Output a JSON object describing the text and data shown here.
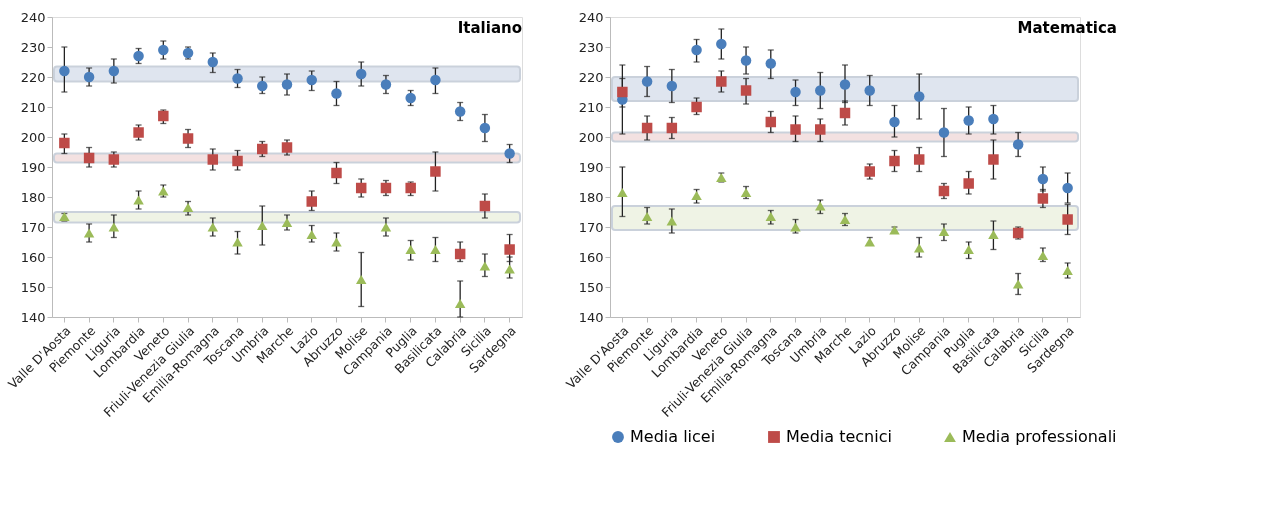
{
  "chart_data": [
    {
      "type": "scatter",
      "title": "Italiano",
      "categories": [
        "Valle D'Aosta",
        "Piemonte",
        "Liguria",
        "Lombardia",
        "Veneto",
        "Friuli-Venezia Giulia",
        "Emilia-Romagna",
        "Toscana",
        "Umbria",
        "Marche",
        "Lazio",
        "Abruzzo",
        "Molise",
        "Campania",
        "Puglia",
        "Basilicata",
        "Calabria",
        "Sicilia",
        "Sardegna"
      ],
      "ylim": [
        140,
        240
      ],
      "yticks": [
        140,
        150,
        160,
        170,
        180,
        190,
        200,
        210,
        220,
        230,
        240
      ],
      "grid": false,
      "legend": false,
      "series": [
        {
          "color": "#4a7ebb",
          "marker": "circle",
          "values": [
            222,
            220,
            222,
            227,
            229,
            228,
            225,
            219.5,
            217,
            217.5,
            219,
            214.5,
            221,
            217.5,
            213,
            219,
            208.5,
            203,
            194.5
          ],
          "errors": [
            [
              215,
              230
            ],
            [
              217,
              223
            ],
            [
              218,
              226
            ],
            [
              224.5,
              229.5
            ],
            [
              226,
              232
            ],
            [
              226,
              230
            ],
            [
              221.5,
              228
            ],
            [
              216.5,
              222.5
            ],
            [
              214.5,
              220
            ],
            [
              214,
              221
            ],
            [
              215.5,
              222
            ],
            [
              210.5,
              218.5
            ],
            [
              217,
              225
            ],
            [
              214.5,
              220.5
            ],
            [
              210.5,
              215.5
            ],
            [
              214.5,
              223
            ],
            [
              205.5,
              211.5
            ],
            [
              198.5,
              207.5
            ],
            [
              191.5,
              197.5
            ]
          ]
        },
        {
          "color": "#be4b48",
          "marker": "square",
          "values": [
            198,
            193,
            192.5,
            201.5,
            207,
            199.5,
            192.5,
            192,
            196,
            196.5,
            178.5,
            188,
            183,
            183,
            183,
            188.5,
            161,
            177,
            162.5
          ],
          "errors": [
            [
              194.5,
              201
            ],
            [
              190,
              196.5
            ],
            [
              190,
              195
            ],
            [
              199,
              204
            ],
            [
              204.5,
              209
            ],
            [
              196.5,
              202.5
            ],
            [
              189,
              196
            ],
            [
              189,
              195.5
            ],
            [
              193.5,
              198.5
            ],
            [
              194,
              199
            ],
            [
              175.5,
              182
            ],
            [
              184.5,
              191.5
            ],
            [
              180,
              186
            ],
            [
              180.5,
              185.5
            ],
            [
              180.5,
              185
            ],
            [
              182,
              195
            ],
            [
              158.5,
              165
            ],
            [
              173,
              181
            ],
            [
              158.5,
              167.5
            ]
          ]
        },
        {
          "color": "#9bbb59",
          "marker": "triangle",
          "values": [
            173.5,
            168,
            170,
            179,
            182,
            176.5,
            170,
            165,
            170.5,
            171.5,
            167.5,
            165,
            152.5,
            170,
            162.5,
            162.5,
            144.5,
            157,
            156
          ],
          "errors": [
            [
              172,
              174.5
            ],
            [
              165,
              171
            ],
            [
              166.5,
              174
            ],
            [
              176,
              182
            ],
            [
              180,
              184
            ],
            [
              174,
              178.5
            ],
            [
              167,
              173
            ],
            [
              161,
              168.5
            ],
            [
              164,
              177
            ],
            [
              169,
              174
            ],
            [
              165,
              170.5
            ],
            [
              162,
              168
            ],
            [
              143.5,
              161.5
            ],
            [
              167,
              173
            ],
            [
              159,
              165.5
            ],
            [
              158.5,
              166.5
            ],
            [
              140,
              152
            ],
            [
              153.5,
              161
            ],
            [
              153,
              160
            ]
          ]
        }
      ],
      "bands": [
        {
          "axis": "y",
          "from": 218.5,
          "to": 223.5,
          "color": "#dce3ee"
        },
        {
          "axis": "y",
          "from": 191.5,
          "to": 194.5,
          "color": "#f2dede"
        },
        {
          "axis": "y",
          "from": 171.5,
          "to": 175,
          "color": "#eef2e3"
        }
      ]
    },
    {
      "type": "scatter",
      "title": "Matematica",
      "categories": [
        "Valle D'Aosta",
        "Piemonte",
        "Liguria",
        "Lombardia",
        "Veneto",
        "Friuli-Venezia Giulia",
        "Emilia-Romagna",
        "Toscana",
        "Umbria",
        "Marche",
        "Lazio",
        "Abruzzo",
        "Molise",
        "Campania",
        "Puglia",
        "Basilicata",
        "Calabria",
        "Sicilia",
        "Sardegna"
      ],
      "ylim": [
        140,
        240
      ],
      "yticks": [
        140,
        150,
        160,
        170,
        180,
        190,
        200,
        210,
        220,
        230,
        240
      ],
      "grid": false,
      "legend": "bottom",
      "series": [
        {
          "name": "Media licei",
          "color": "#4a7ebb",
          "marker": "circle",
          "values": [
            212.5,
            218.5,
            217,
            229,
            231,
            225.5,
            224.5,
            215,
            215.5,
            217.5,
            215.5,
            205,
            213.5,
            201.5,
            205.5,
            206,
            197.5,
            186,
            183
          ],
          "errors": [
            [
              201,
              224
            ],
            [
              213.5,
              223.5
            ],
            [
              211.5,
              222.5
            ],
            [
              225,
              232.5
            ],
            [
              226,
              236
            ],
            [
              221,
              230
            ],
            [
              219.5,
              229
            ],
            [
              210.5,
              219
            ],
            [
              209.5,
              221.5
            ],
            [
              211.5,
              224
            ],
            [
              210.5,
              220.5
            ],
            [
              200,
              210.5
            ],
            [
              206,
              221
            ],
            [
              193.5,
              209.5
            ],
            [
              201,
              210
            ],
            [
              201,
              210.5
            ],
            [
              193.5,
              201.5
            ],
            [
              182,
              190
            ],
            [
              178,
              188
            ]
          ]
        },
        {
          "name": "Media tecnici",
          "color": "#be4b48",
          "marker": "square",
          "values": [
            215,
            203,
            203,
            210,
            218.5,
            215.5,
            205,
            202.5,
            202.5,
            208,
            188.5,
            192,
            192.5,
            182,
            184.5,
            192.5,
            168,
            179.5,
            172.5
          ],
          "errors": [
            [
              210,
              219.5
            ],
            [
              199,
              207
            ],
            [
              199.5,
              206.5
            ],
            [
              207.5,
              213
            ],
            [
              215,
              222
            ],
            [
              211,
              219.5
            ],
            [
              201.5,
              208.5
            ],
            [
              198.5,
              207
            ],
            [
              198.5,
              206
            ],
            [
              204,
              212
            ],
            [
              186,
              191
            ],
            [
              188.5,
              195.5
            ],
            [
              188.5,
              196.5
            ],
            [
              179.5,
              184.5
            ],
            [
              181,
              188.5
            ],
            [
              186,
              199
            ],
            [
              166,
              170
            ],
            [
              176.5,
              182.5
            ],
            [
              167.5,
              177.5
            ]
          ]
        },
        {
          "name": "Media professionali",
          "color": "#9bbb59",
          "marker": "triangle",
          "values": [
            181.5,
            173.5,
            172,
            180.5,
            186.5,
            181.5,
            173.5,
            170,
            177,
            172.5,
            165,
            169,
            163,
            168.5,
            162.5,
            167.5,
            151,
            160.5,
            155.5
          ],
          "errors": [
            [
              173.5,
              190
            ],
            [
              171,
              176.5
            ],
            [
              168,
              176
            ],
            [
              178,
              182.5
            ],
            [
              185,
              188
            ],
            [
              179.5,
              183.5
            ],
            [
              171,
              175.5
            ],
            [
              168,
              172.5
            ],
            [
              174.5,
              179
            ],
            [
              170.5,
              174.5
            ],
            [
              164,
              166.5
            ],
            [
              168,
              170
            ],
            [
              160,
              166.5
            ],
            [
              165.5,
              171
            ],
            [
              159.5,
              165
            ],
            [
              162.5,
              172
            ],
            [
              147.5,
              154.5
            ],
            [
              158.5,
              163
            ],
            [
              153,
              158
            ]
          ]
        }
      ],
      "bands": [
        {
          "axis": "y",
          "from": 212,
          "to": 220,
          "color": "#dce3ee"
        },
        {
          "axis": "y",
          "from": 198.5,
          "to": 201.5,
          "color": "#f2dede"
        },
        {
          "axis": "y",
          "from": 169,
          "to": 177,
          "color": "#eef2e3"
        }
      ]
    }
  ]
}
